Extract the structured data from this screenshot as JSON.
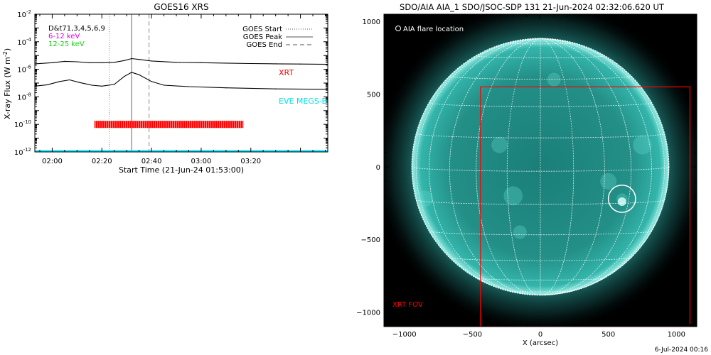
{
  "footer_date": "6-Jul-2024 00:16",
  "chart_data": [
    {
      "type": "line",
      "title": "GOES16 XRS",
      "xlabel": "Start Time (21-Jun-24 01:53:00)",
      "ylabel": "X-ray Flux (W m^-2)",
      "ylabel_parts": {
        "main": "X-ray Flux (W m",
        "exp": "-2",
        "close": ")"
      },
      "x_range": [
        "01:53",
        "03:51"
      ],
      "x_ticks": [
        "02:00",
        "02:20",
        "02:40",
        "03:00",
        "03:20"
      ],
      "y_scale": "log",
      "ylim_exp": [
        -12,
        -2
      ],
      "y_ticks_exp": [
        "-12",
        "-10",
        "-8",
        "-6",
        "-4",
        "-2"
      ],
      "y_tick_base": "10",
      "legend_left": {
        "title": "D&t71,3,4,5,6,9",
        "items": [
          {
            "label": "6-12 keV",
            "color": "#e000e0"
          },
          {
            "label": "12-25 keV",
            "color": "#10d010"
          }
        ]
      },
      "legend_right": [
        {
          "label": "GOES Start",
          "style": "dotted"
        },
        {
          "label": "GOES Peak",
          "style": "solid"
        },
        {
          "label": "GOES End",
          "style": "dashed"
        }
      ],
      "markers": {
        "goes_start": "02:23",
        "goes_peak": "02:32",
        "goes_end": "02:39"
      },
      "annotations": [
        {
          "text": "XRT",
          "color": "#ff0000"
        },
        {
          "text": "EVE MEGS-B",
          "color": "#00e0e0"
        }
      ],
      "series": [
        {
          "name": "GOES XRS long",
          "color": "#000000",
          "points": [
            [
              "01:53",
              2.5e-06
            ],
            [
              "02:00",
              3e-06
            ],
            [
              "02:05",
              3.8e-06
            ],
            [
              "02:10",
              3.5e-06
            ],
            [
              "02:15",
              3e-06
            ],
            [
              "02:20",
              3e-06
            ],
            [
              "02:25",
              3.2e-06
            ],
            [
              "02:29",
              4.3e-06
            ],
            [
              "02:32",
              6e-06
            ],
            [
              "02:35",
              5.2e-06
            ],
            [
              "02:40",
              4e-06
            ],
            [
              "02:50",
              3.2e-06
            ],
            [
              "03:00",
              3e-06
            ],
            [
              "03:10",
              2.8e-06
            ],
            [
              "03:20",
              2.6e-06
            ],
            [
              "03:30",
              2.5e-06
            ],
            [
              "03:40",
              2.4e-06
            ],
            [
              "03:51",
              2.3e-06
            ]
          ]
        },
        {
          "name": "GOES XRS short",
          "color": "#000000",
          "points": [
            [
              "01:53",
              6e-08
            ],
            [
              "01:58",
              7.5e-08
            ],
            [
              "02:03",
              1.3e-07
            ],
            [
              "02:07",
              1.7e-07
            ],
            [
              "02:11",
              1.1e-07
            ],
            [
              "02:16",
              7e-08
            ],
            [
              "02:20",
              6e-08
            ],
            [
              "02:25",
              8e-08
            ],
            [
              "02:29",
              3e-07
            ],
            [
              "02:32",
              6e-07
            ],
            [
              "02:35",
              4e-07
            ],
            [
              "02:40",
              1.3e-07
            ],
            [
              "02:45",
              7e-08
            ],
            [
              "02:55",
              5.5e-08
            ],
            [
              "03:10",
              4.5e-08
            ],
            [
              "03:30",
              3.8e-08
            ],
            [
              "03:51",
              3.5e-08
            ]
          ]
        }
      ],
      "xrt_bar_span": [
        "02:17",
        "03:17"
      ],
      "xrt_bar_level": 1e-10
    },
    {
      "type": "image",
      "title": "SDO/AIA AIA_1 SDO/JSOC-SDP 131 21-Jun-2024 02:32:06.620 UT",
      "xlabel": "X (arcsec)",
      "xlim": [
        -1150,
        1150
      ],
      "ylim": [
        -1100,
        1050
      ],
      "x_ticks": [
        -1000,
        -500,
        0,
        500,
        1000
      ],
      "y_ticks": [
        1000,
        500,
        0,
        -500,
        -1000
      ],
      "solar_radius_arcsec": 945,
      "legend": "AIA flare location",
      "flare_location": [
        600,
        -220
      ],
      "xrt_fov": {
        "label": "XRT FOV",
        "x": [
          -440,
          1100
        ],
        "y": [
          -1100,
          550
        ]
      },
      "colors": {
        "sun": "#2bb0a6",
        "grid": "#ffffff",
        "fov": "#ff0000"
      }
    }
  ]
}
